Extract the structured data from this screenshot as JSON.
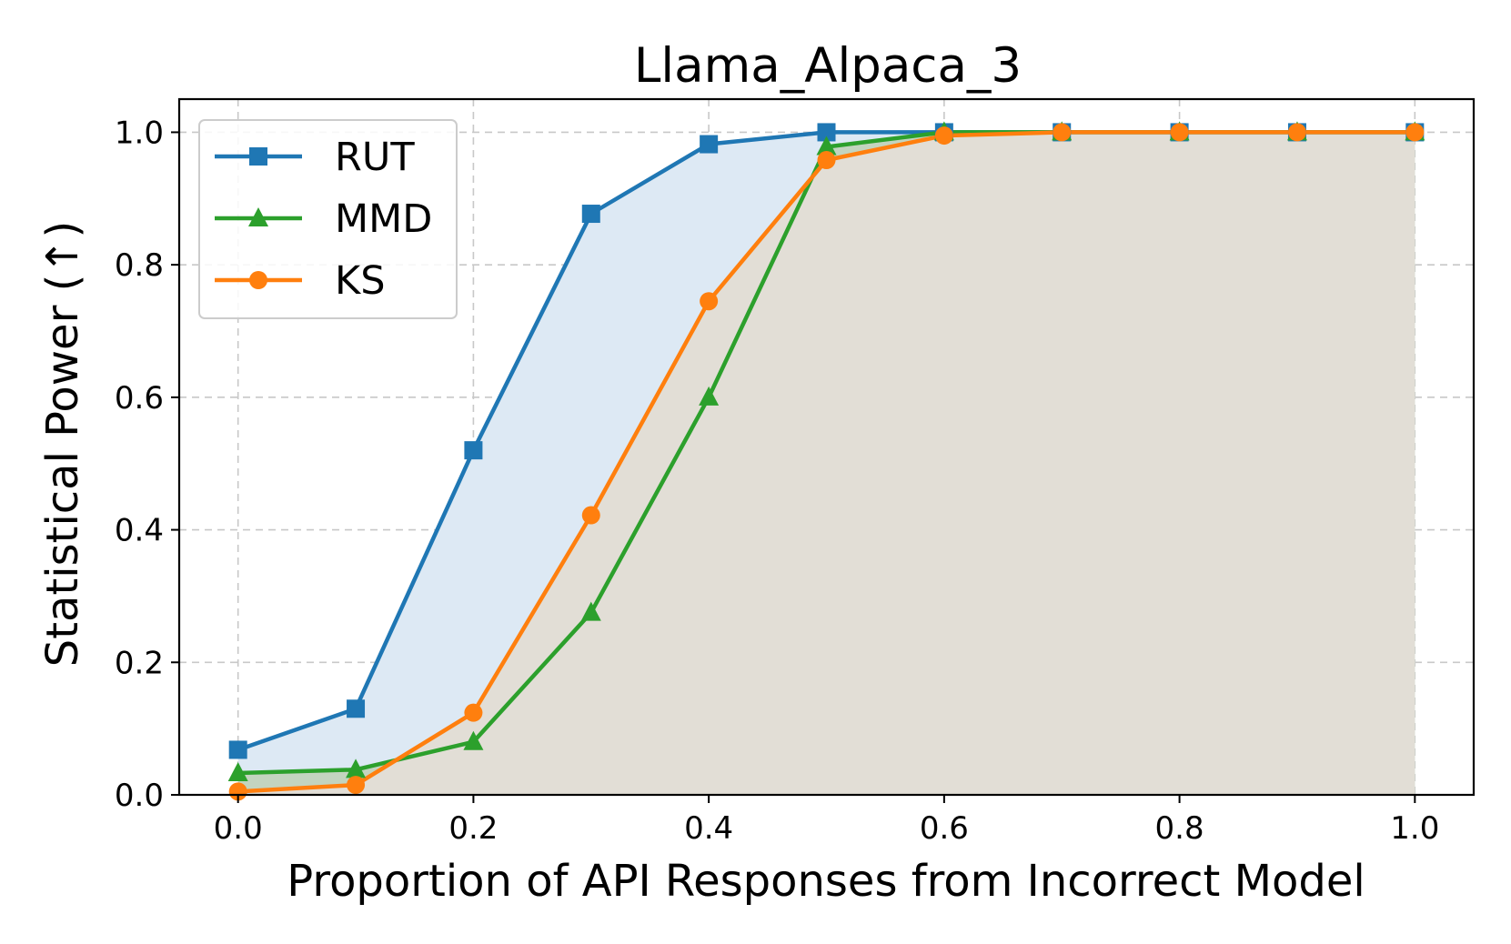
{
  "chart_data": {
    "type": "line",
    "title": "Llama_Alpaca_3",
    "xlabel": "Proportion of API Responses from Incorrect Model",
    "ylabel": "Statistical Power (↑)",
    "xlim": [
      -0.05,
      1.05
    ],
    "ylim": [
      0.0,
      1.05
    ],
    "xticks": [
      0.0,
      0.2,
      0.4,
      0.6,
      0.8,
      1.0
    ],
    "xtick_labels": [
      "0.0",
      "0.2",
      "0.4",
      "0.6",
      "0.8",
      "1.0"
    ],
    "yticks": [
      0.0,
      0.2,
      0.4,
      0.6,
      0.8,
      1.0
    ],
    "ytick_labels": [
      "0.0",
      "0.2",
      "0.4",
      "0.6",
      "0.8",
      "1.0"
    ],
    "grid": true,
    "legend_position": "top-left",
    "x": [
      0.0,
      0.1,
      0.2,
      0.3,
      0.4,
      0.5,
      0.6,
      0.7,
      0.8,
      0.9,
      1.0
    ],
    "series": [
      {
        "name": "RUT",
        "color": "#1f77b4",
        "marker": "square",
        "fill": "#dde9f4",
        "values": [
          0.068,
          0.13,
          0.52,
          0.877,
          0.982,
          1.0,
          1.0,
          1.0,
          1.0,
          1.0,
          1.0
        ]
      },
      {
        "name": "MMD",
        "color": "#2ca02c",
        "marker": "triangle",
        "fill": "#c3d4bf",
        "values": [
          0.033,
          0.038,
          0.08,
          0.275,
          0.6,
          0.978,
          1.0,
          1.0,
          1.0,
          1.0,
          1.0
        ]
      },
      {
        "name": "KS",
        "color": "#ff7f0e",
        "marker": "circle",
        "fill": "#e2ded6",
        "values": [
          0.005,
          0.015,
          0.124,
          0.422,
          0.745,
          0.958,
          0.995,
          1.0,
          1.0,
          1.0,
          1.0
        ]
      }
    ]
  }
}
